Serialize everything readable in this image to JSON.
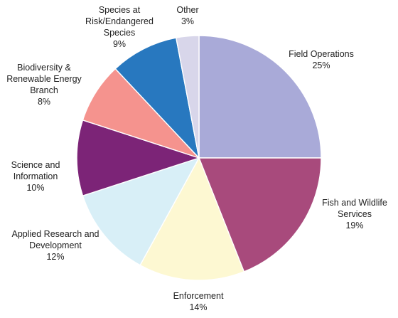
{
  "chart_data": {
    "type": "pie",
    "title": "",
    "start_angle_deg": 0,
    "direction": "clockwise",
    "slices": [
      {
        "label": "Field Operations",
        "label_lines": [
          "Field Operations",
          "25%"
        ],
        "value": 25,
        "color": "#a9aad8"
      },
      {
        "label": "Fish and Wildlife Services",
        "label_lines": [
          "Fish and Wildlife",
          "Services",
          "19%"
        ],
        "value": 19,
        "color": "#a84a7c"
      },
      {
        "label": "Enforcement",
        "label_lines": [
          "Enforcement",
          "14%"
        ],
        "value": 14,
        "color": "#fdf8d2"
      },
      {
        "label": "Applied Research and Development",
        "label_lines": [
          "Applied Research and",
          "Development",
          "12%"
        ],
        "value": 12,
        "color": "#d8eff7"
      },
      {
        "label": "Science and Information",
        "label_lines": [
          "Science and",
          "Information",
          "10%"
        ],
        "value": 10,
        "color": "#7c2477"
      },
      {
        "label": "Biodiversity & Renewable Energy Branch",
        "label_lines": [
          "Biodiversity &",
          "Renewable Energy",
          "Branch",
          "8%"
        ],
        "value": 8,
        "color": "#f5938e"
      },
      {
        "label": "Species at Risk/Endangered Species",
        "label_lines": [
          "Species at",
          "Risk/Endangered",
          "Species",
          "9%"
        ],
        "value": 9,
        "color": "#2878bf"
      },
      {
        "label": "Other",
        "label_lines": [
          "Other",
          "3%"
        ],
        "value": 3,
        "color": "#d8d6ea"
      }
    ]
  }
}
